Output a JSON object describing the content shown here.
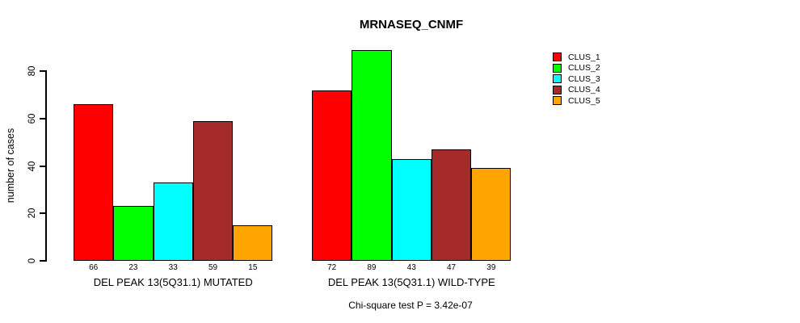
{
  "chart_data": {
    "type": "bar",
    "title": "MRNASEQ_CNMF",
    "xlabel": "",
    "ylabel": "number of cases",
    "ylim": [
      0,
      89
    ],
    "yticks": [
      0,
      20,
      40,
      60,
      80
    ],
    "grid": false,
    "legend_position": "right",
    "categories": [
      "DEL PEAK 13(5Q31.1) MUTATED",
      "DEL PEAK 13(5Q31.1) WILD-TYPE"
    ],
    "series": [
      {
        "name": "CLUS_1",
        "color": "#FF0000",
        "values": [
          66,
          72
        ]
      },
      {
        "name": "CLUS_2",
        "color": "#00FF00",
        "values": [
          23,
          89
        ]
      },
      {
        "name": "CLUS_3",
        "color": "#00FFFF",
        "values": [
          33,
          43
        ]
      },
      {
        "name": "CLUS_4",
        "color": "#A52A2A",
        "values": [
          59,
          47
        ]
      },
      {
        "name": "CLUS_5",
        "color": "#FFA500",
        "values": [
          15,
          39
        ]
      }
    ],
    "bar_value_labels": {
      "DEL PEAK 13(5Q31.1) MUTATED": [
        66,
        23,
        33,
        59,
        15
      ],
      "DEL PEAK 13(5Q31.1) WILD-TYPE": [
        72,
        89,
        43,
        47,
        39
      ]
    },
    "annotation": "Chi-square test P = 3.42e-07"
  },
  "colors": {
    "axis": "#000000",
    "text": "#000000",
    "background": "#FFFFFF"
  }
}
